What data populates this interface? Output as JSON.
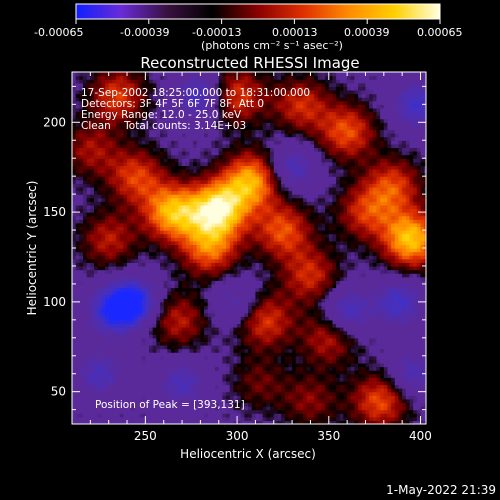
{
  "colorbar": {
    "ticks": [
      "-0.00065",
      "-0.00039",
      "-0.00013",
      "0.00013",
      "0.00039",
      "0.00065"
    ],
    "unit_label": "(photons cm⁻² s⁻¹ asec⁻²)",
    "stops": [
      "#1020ff",
      "#6a2bd6",
      "#3a1040",
      "#000000",
      "#8a0000",
      "#e03000",
      "#ff8c00",
      "#ffd000",
      "#ffffe0"
    ]
  },
  "chart_data": {
    "type": "heatmap",
    "title": "Reconstructed RHESSI Image",
    "xlabel": "Heliocentric X (arcsec)",
    "ylabel": "Heliocentric Y (arcsec)",
    "xlim": [
      210,
      403
    ],
    "ylim": [
      32,
      228
    ],
    "xticks": [
      250,
      300,
      350,
      400
    ],
    "yticks": [
      50,
      100,
      150,
      200
    ],
    "x_tick_labels": [
      "250",
      "300",
      "350",
      "400"
    ],
    "y_tick_labels": [
      "50",
      "100",
      "150",
      "200"
    ],
    "annotations": {
      "time": "17-Sep-2002 18:25:00.000 to 18:31:00.000",
      "detectors": "Detectors: 3F 4F 5F 6F 7F 8F, Att 0",
      "energy": "Energy Range: 12.0 - 25.0 keV",
      "method": "Clean    Total counts: 3.14E+03",
      "peak": "Position of Peak = [393,131]"
    },
    "peak": [
      393,
      131
    ],
    "sources": [
      {
        "x": 290,
        "y": 152,
        "intensity": 0.95
      },
      {
        "x": 265,
        "y": 150,
        "intensity": 0.8
      },
      {
        "x": 308,
        "y": 168,
        "intensity": 0.75
      },
      {
        "x": 285,
        "y": 130,
        "intensity": 0.6
      },
      {
        "x": 245,
        "y": 170,
        "intensity": 0.5
      },
      {
        "x": 325,
        "y": 140,
        "intensity": 0.55
      },
      {
        "x": 340,
        "y": 115,
        "intensity": 0.45
      },
      {
        "x": 360,
        "y": 195,
        "intensity": 0.55
      },
      {
        "x": 395,
        "y": 135,
        "intensity": 0.85
      },
      {
        "x": 385,
        "y": 165,
        "intensity": 0.5
      },
      {
        "x": 370,
        "y": 150,
        "intensity": 0.45
      },
      {
        "x": 300,
        "y": 215,
        "intensity": 0.5
      },
      {
        "x": 335,
        "y": 210,
        "intensity": 0.45
      },
      {
        "x": 235,
        "y": 215,
        "intensity": 0.5
      },
      {
        "x": 230,
        "y": 135,
        "intensity": 0.4
      },
      {
        "x": 268,
        "y": 90,
        "intensity": 0.4
      },
      {
        "x": 315,
        "y": 90,
        "intensity": 0.5
      },
      {
        "x": 350,
        "y": 80,
        "intensity": 0.4
      },
      {
        "x": 378,
        "y": 45,
        "intensity": 0.55
      },
      {
        "x": 340,
        "y": 45,
        "intensity": 0.3
      },
      {
        "x": 220,
        "y": 185,
        "intensity": 0.35
      },
      {
        "x": 312,
        "y": 55,
        "intensity": 0.25
      }
    ],
    "negative_sources": [
      {
        "x": 243,
        "y": 100,
        "intensity": 0.8
      },
      {
        "x": 232,
        "y": 95,
        "intensity": 0.6
      },
      {
        "x": 280,
        "y": 215,
        "intensity": 0.5
      },
      {
        "x": 360,
        "y": 95,
        "intensity": 0.5
      },
      {
        "x": 388,
        "y": 100,
        "intensity": 0.5
      },
      {
        "x": 330,
        "y": 175,
        "intensity": 0.45
      },
      {
        "x": 398,
        "y": 210,
        "intensity": 0.5
      },
      {
        "x": 270,
        "y": 55,
        "intensity": 0.4
      },
      {
        "x": 300,
        "y": 100,
        "intensity": 0.35
      },
      {
        "x": 225,
        "y": 60,
        "intensity": 0.4
      },
      {
        "x": 395,
        "y": 60,
        "intensity": 0.4
      }
    ]
  },
  "footer": {
    "timestamp": "1-May-2022 21:39"
  }
}
